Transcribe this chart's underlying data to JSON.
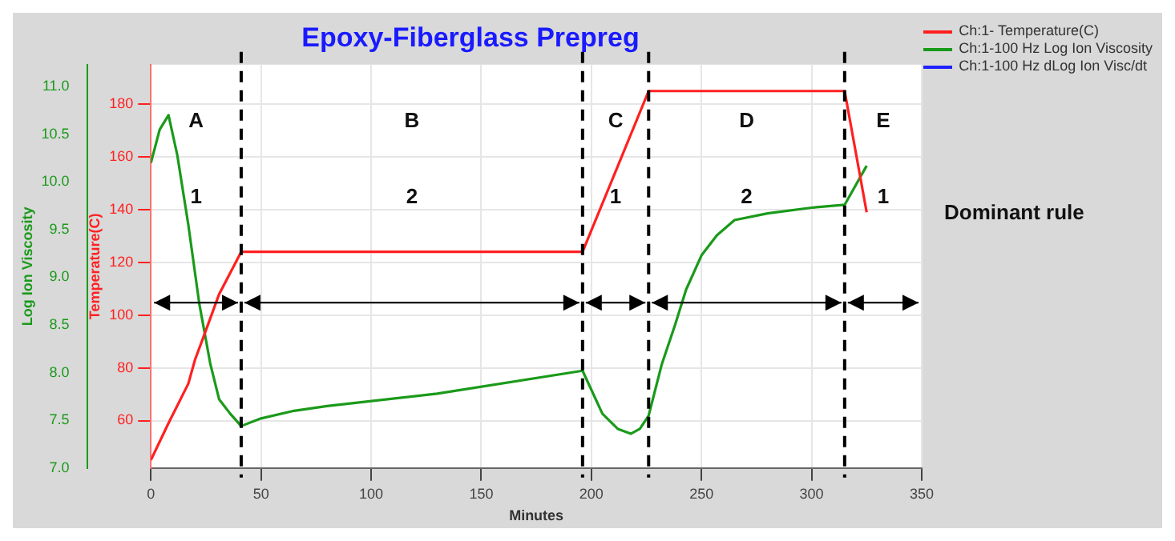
{
  "chart_data": {
    "type": "line",
    "title": "Epoxy-Fiberglass Prepreg",
    "xlabel": "Minutes",
    "ylabel": "Temperature(C)",
    "y2label": "Log Ion Viscosity",
    "xlim": [
      0,
      350
    ],
    "xticks": [
      0,
      50,
      100,
      150,
      200,
      250,
      300,
      350
    ],
    "ylim": [
      42,
      195
    ],
    "yticks": [
      60,
      80,
      100,
      120,
      140,
      160,
      180
    ],
    "y2lim": [
      7,
      11.23
    ],
    "y2ticks": [
      {
        "value": 7,
        "label": "7.0"
      },
      {
        "value": 7.5,
        "label": "7.5"
      },
      {
        "value": 8,
        "label": "8.0"
      },
      {
        "value": 8.5,
        "label": "8.5"
      },
      {
        "value": 9,
        "label": "9.0"
      },
      {
        "value": 9.5,
        "label": "9.5"
      },
      {
        "value": 10,
        "label": "10.0"
      },
      {
        "value": 10.5,
        "label": "10.5"
      },
      {
        "value": 11,
        "label": "11.0"
      }
    ],
    "grid": true,
    "legend": "top right",
    "marker": "none",
    "line_style": "solid",
    "series": [
      {
        "name": "Ch:1- Temperature(C)",
        "color": "#ff2020",
        "axis": "y",
        "x": [
          0,
          8,
          17,
          20,
          24,
          31,
          41,
          196,
          226,
          315,
          325
        ],
        "values": [
          45,
          59,
          74,
          83,
          92,
          108,
          124,
          124,
          185,
          185,
          139
        ]
      },
      {
        "name": "Ch:1-100 Hz Log Ion Viscosity",
        "color": "#1a9a1a",
        "axis": "y2",
        "x": [
          0,
          4,
          8,
          12,
          17,
          22,
          27,
          31,
          36,
          41,
          50,
          65,
          80,
          130,
          196,
          205,
          212,
          218,
          222,
          226,
          232,
          238,
          243,
          250,
          257,
          265,
          280,
          300,
          315,
          325
        ],
        "values": [
          10.2,
          10.55,
          10.7,
          10.28,
          9.55,
          8.72,
          8.09,
          7.72,
          7.57,
          7.44,
          7.52,
          7.6,
          7.65,
          7.78,
          8.02,
          7.57,
          7.41,
          7.36,
          7.41,
          7.55,
          8.09,
          8.5,
          8.87,
          9.23,
          9.44,
          9.6,
          9.67,
          9.73,
          9.76,
          10.17
        ]
      },
      {
        "name": "Ch:1-100 Hz dLog Ion Visc/dt",
        "color": "#2020ff",
        "axis": "y2"
      }
    ],
    "ref_lines": [
      {
        "axis": "x",
        "value": 41,
        "color": "#000000",
        "line_style": "dashed"
      },
      {
        "axis": "x",
        "value": 196,
        "color": "#000000",
        "line_style": "dashed"
      },
      {
        "axis": "x",
        "value": 226,
        "color": "#000000",
        "line_style": "dashed"
      },
      {
        "axis": "x",
        "value": 315,
        "color": "#000000",
        "line_style": "dashed"
      }
    ],
    "annotations": [
      "A",
      "B",
      "C",
      "D",
      "E",
      "1",
      "2",
      "1",
      "2",
      "1",
      "Dominant rule"
    ]
  }
}
